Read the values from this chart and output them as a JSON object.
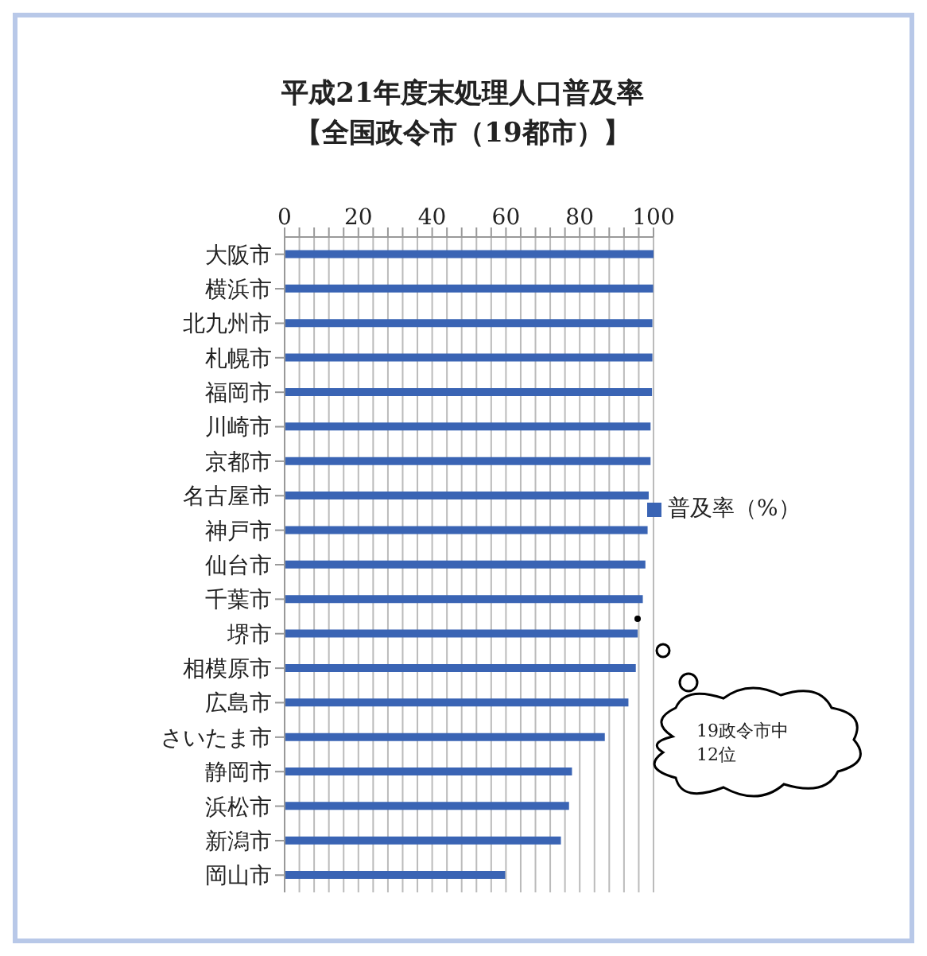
{
  "chart_data": {
    "type": "bar",
    "orientation": "horizontal",
    "title": "平成21年度末処理人口普及率",
    "subtitle": "【全国政令市（19都市）】",
    "categories": [
      "大阪市",
      "横浜市",
      "北九州市",
      "札幌市",
      "福岡市",
      "川崎市",
      "京都市",
      "名古屋市",
      "神戸市",
      "仙台市",
      "千葉市",
      "堺市",
      "相模原市",
      "広島市",
      "さいたま市",
      "静岡市",
      "浜松市",
      "新潟市",
      "岡山市"
    ],
    "series": [
      {
        "name": "普及率（%）",
        "color": "#3a64b4",
        "values": [
          100,
          99.9,
          99.7,
          99.7,
          99.6,
          99.2,
          99.2,
          98.7,
          98.4,
          97.8,
          97.1,
          95.7,
          95.2,
          93.2,
          86.8,
          77.9,
          77.1,
          74.9,
          59.8
        ]
      }
    ],
    "xlim": [
      0,
      100
    ],
    "xticks": [
      0,
      {
        "value": 4,
        "label": null
      },
      {
        "value": 8,
        "label": null
      },
      {
        "value": 12,
        "label": null
      },
      {
        "value": 16,
        "label": null
      },
      20,
      {
        "value": 24,
        "label": null
      },
      {
        "value": 28,
        "label": null
      },
      {
        "value": 32,
        "label": null
      },
      {
        "value": 36,
        "label": null
      },
      40,
      {
        "value": 44,
        "label": null
      },
      {
        "value": 48,
        "label": null
      },
      {
        "value": 52,
        "label": null
      },
      {
        "value": 56,
        "label": null
      },
      60,
      {
        "value": 64,
        "label": null
      },
      {
        "value": 68,
        "label": null
      },
      {
        "value": 72,
        "label": null
      },
      {
        "value": 76,
        "label": null
      },
      80,
      {
        "value": 84,
        "label": null
      },
      {
        "value": 88,
        "label": null
      },
      {
        "value": 92,
        "label": null
      },
      {
        "value": 96,
        "label": null
      },
      100
    ],
    "grid": "x",
    "legend": "right",
    "annotations": [
      "19政令市中\n12位"
    ]
  }
}
